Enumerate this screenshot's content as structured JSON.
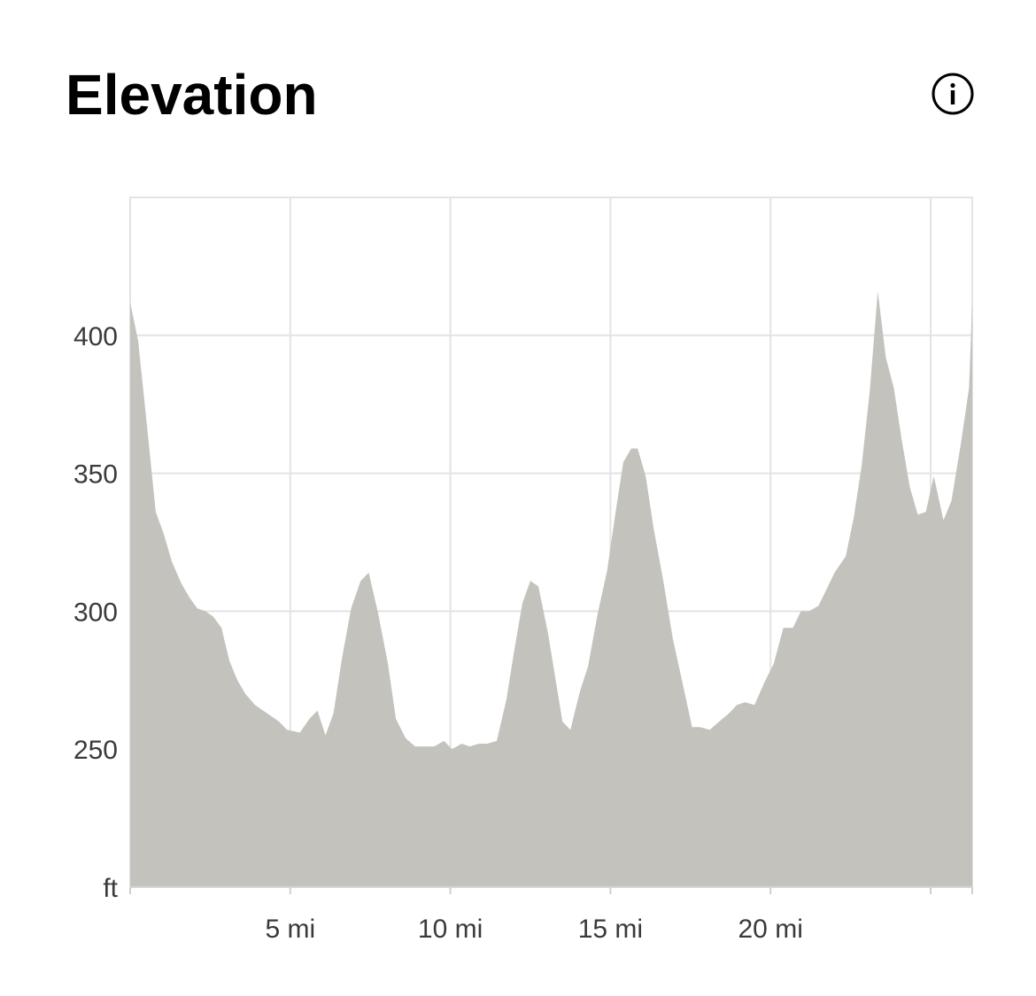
{
  "header": {
    "title": "Elevation",
    "info_icon": "info-icon"
  },
  "colors": {
    "area_fill": "#c3c2bd",
    "grid": "#e3e3e3",
    "text": "#3a3a3a"
  },
  "chart_data": {
    "type": "area",
    "title": "Elevation",
    "xlabel": "",
    "ylabel": "ft",
    "x_unit": "mi",
    "xlim": [
      0,
      26.3
    ],
    "ylim": [
      200,
      450
    ],
    "x_ticks": [
      5,
      10,
      15,
      20
    ],
    "x_tick_labels": [
      "5 mi",
      "10 mi",
      "15 mi",
      "20 mi"
    ],
    "x_grid": [
      5,
      10,
      15,
      20,
      25
    ],
    "y_ticks": [
      250,
      300,
      350,
      400
    ],
    "y_tick_labels": [
      "250",
      "300",
      "350",
      "400"
    ],
    "y_unit_label": "ft",
    "grid": true,
    "series": [
      {
        "points": [
          [
            0.0,
            412
          ],
          [
            0.25,
            398
          ],
          [
            0.5,
            370
          ],
          [
            0.8,
            336
          ],
          [
            1.05,
            328
          ],
          [
            1.3,
            318
          ],
          [
            1.6,
            310
          ],
          [
            1.85,
            305
          ],
          [
            2.1,
            301
          ],
          [
            2.35,
            300
          ],
          [
            2.6,
            298
          ],
          [
            2.85,
            294
          ],
          [
            3.1,
            282
          ],
          [
            3.35,
            275
          ],
          [
            3.6,
            270
          ],
          [
            3.9,
            266
          ],
          [
            4.15,
            264
          ],
          [
            4.4,
            262
          ],
          [
            4.65,
            260
          ],
          [
            4.9,
            257
          ],
          [
            5.3,
            256
          ],
          [
            5.6,
            261
          ],
          [
            5.85,
            264
          ],
          [
            6.1,
            255
          ],
          [
            6.35,
            263
          ],
          [
            6.6,
            282
          ],
          [
            6.9,
            301
          ],
          [
            7.2,
            311
          ],
          [
            7.45,
            314
          ],
          [
            7.75,
            299
          ],
          [
            8.05,
            281
          ],
          [
            8.3,
            261
          ],
          [
            8.6,
            254
          ],
          [
            8.9,
            251
          ],
          [
            9.2,
            251
          ],
          [
            9.5,
            251
          ],
          [
            9.8,
            253
          ],
          [
            10.05,
            250
          ],
          [
            10.35,
            252
          ],
          [
            10.6,
            251
          ],
          [
            10.9,
            252
          ],
          [
            11.15,
            252
          ],
          [
            11.45,
            253
          ],
          [
            11.75,
            268
          ],
          [
            12.0,
            286
          ],
          [
            12.25,
            303
          ],
          [
            12.5,
            311
          ],
          [
            12.75,
            309
          ],
          [
            13.05,
            292
          ],
          [
            13.5,
            260
          ],
          [
            13.75,
            257
          ],
          [
            14.05,
            271
          ],
          [
            14.3,
            280
          ],
          [
            14.6,
            299
          ],
          [
            14.9,
            315
          ],
          [
            15.15,
            335
          ],
          [
            15.4,
            354
          ],
          [
            15.65,
            359
          ],
          [
            15.85,
            359
          ],
          [
            16.1,
            349
          ],
          [
            16.35,
            330
          ],
          [
            16.65,
            311
          ],
          [
            16.95,
            290
          ],
          [
            17.25,
            274
          ],
          [
            17.55,
            258
          ],
          [
            17.8,
            258
          ],
          [
            18.1,
            257
          ],
          [
            18.4,
            260
          ],
          [
            18.7,
            263
          ],
          [
            18.95,
            266
          ],
          [
            19.2,
            267
          ],
          [
            19.5,
            266
          ],
          [
            19.8,
            274
          ],
          [
            20.1,
            281
          ],
          [
            20.4,
            294
          ],
          [
            20.7,
            294
          ],
          [
            20.95,
            300
          ],
          [
            21.2,
            300
          ],
          [
            21.5,
            302
          ],
          [
            21.75,
            308
          ],
          [
            22.0,
            314
          ],
          [
            22.35,
            320
          ],
          [
            22.6,
            334
          ],
          [
            22.85,
            353
          ],
          [
            23.1,
            380
          ],
          [
            23.35,
            416
          ],
          [
            23.6,
            392
          ],
          [
            23.85,
            381
          ],
          [
            24.1,
            362
          ],
          [
            24.35,
            345
          ],
          [
            24.6,
            335
          ],
          [
            24.85,
            336
          ],
          [
            25.1,
            349
          ],
          [
            25.4,
            333
          ],
          [
            25.65,
            340
          ],
          [
            25.95,
            361
          ],
          [
            26.2,
            381
          ],
          [
            26.3,
            412
          ]
        ]
      }
    ]
  }
}
